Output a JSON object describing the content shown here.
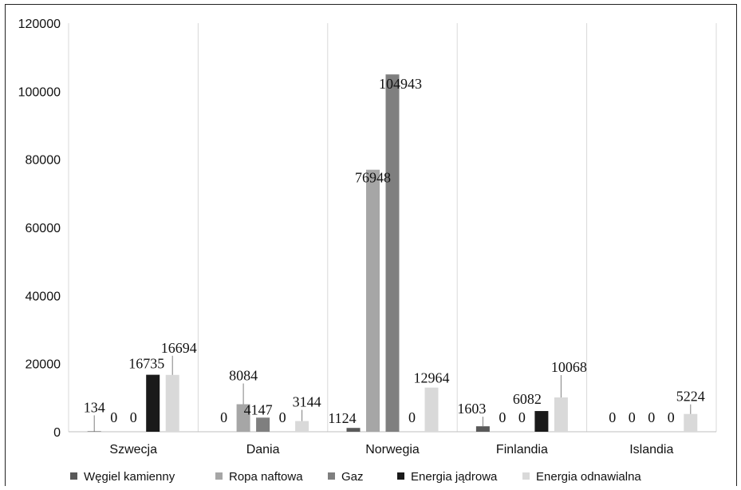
{
  "chart_data": {
    "type": "bar",
    "categories": [
      "Szwecja",
      "Dania",
      "Norwegia",
      "Finlandia",
      "Islandia"
    ],
    "series": [
      {
        "name": "Węgiel kamienny",
        "color": "#595959",
        "values": [
          134,
          0,
          1124,
          1603,
          0
        ]
      },
      {
        "name": "Ropa naftowa",
        "color": "#a6a6a6",
        "values": [
          0,
          8084,
          76948,
          0,
          0
        ]
      },
      {
        "name": "Gaz",
        "color": "#7f7f7f",
        "values": [
          0,
          4147,
          104943,
          0,
          0
        ]
      },
      {
        "name": "Energia jądrowa",
        "color": "#1a1a1a",
        "values": [
          16735,
          0,
          0,
          6082,
          0
        ]
      },
      {
        "name": "Energia odnawialna",
        "color": "#d9d9d9",
        "values": [
          16694,
          3144,
          12964,
          10068,
          5224
        ]
      }
    ],
    "ylim": [
      0,
      120000
    ],
    "yticks": [
      "0",
      "20000",
      "40000",
      "60000",
      "80000",
      "100000",
      "120000"
    ],
    "legend_position": "bottom",
    "grid": "vertical category separators"
  }
}
